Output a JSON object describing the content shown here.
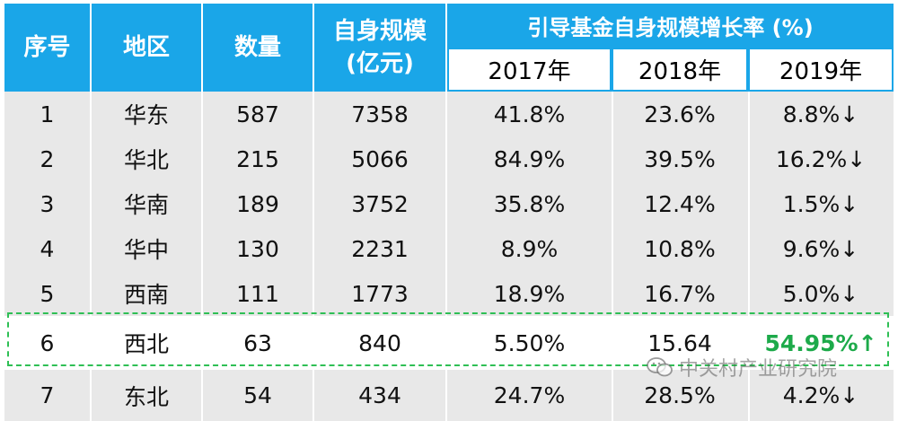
{
  "header": {
    "col_index": "序号",
    "col_region": "地区",
    "col_count": "数量",
    "col_scale_line1": "自身规模",
    "col_scale_line2": "(亿元)",
    "col_growth": "引导基金自身规模增长率 (%)",
    "years": [
      "2017年",
      "2018年",
      "2019年"
    ]
  },
  "rows": [
    {
      "idx": "1",
      "region": "华东",
      "count": "587",
      "scale": "7358",
      "g2017": "41.8%",
      "g2018": "23.6%",
      "g2019": "8.8%↓"
    },
    {
      "idx": "2",
      "region": "华北",
      "count": "215",
      "scale": "5066",
      "g2017": "84.9%",
      "g2018": "39.5%",
      "g2019": "16.2%↓"
    },
    {
      "idx": "3",
      "region": "华南",
      "count": "189",
      "scale": "3752",
      "g2017": "35.8%",
      "g2018": "12.4%",
      "g2019": "1.5%↓"
    },
    {
      "idx": "4",
      "region": "华中",
      "count": "130",
      "scale": "2231",
      "g2017": "8.9%",
      "g2018": "10.8%",
      "g2019": "9.6%↓"
    },
    {
      "idx": "5",
      "region": "西南",
      "count": "111",
      "scale": "1773",
      "g2017": "18.9%",
      "g2018": "16.7%",
      "g2019": "5.0%↓"
    },
    {
      "idx": "6",
      "region": "西北",
      "count": "63",
      "scale": "840",
      "g2017": "5.50%",
      "g2018": "15.64",
      "g2019": "54.95%↑"
    },
    {
      "idx": "7",
      "region": "东北",
      "count": "54",
      "scale": "434",
      "g2017": "24.7%",
      "g2018": "28.5%",
      "g2019": "4.2%↓"
    }
  ],
  "watermark": {
    "text": "中关村产业研究院",
    "icon": "wechat-icon"
  },
  "colors": {
    "header_blue": "#1aa6e8",
    "row_gray": "#e8e8e8",
    "highlight_green": "#2fbf55"
  }
}
